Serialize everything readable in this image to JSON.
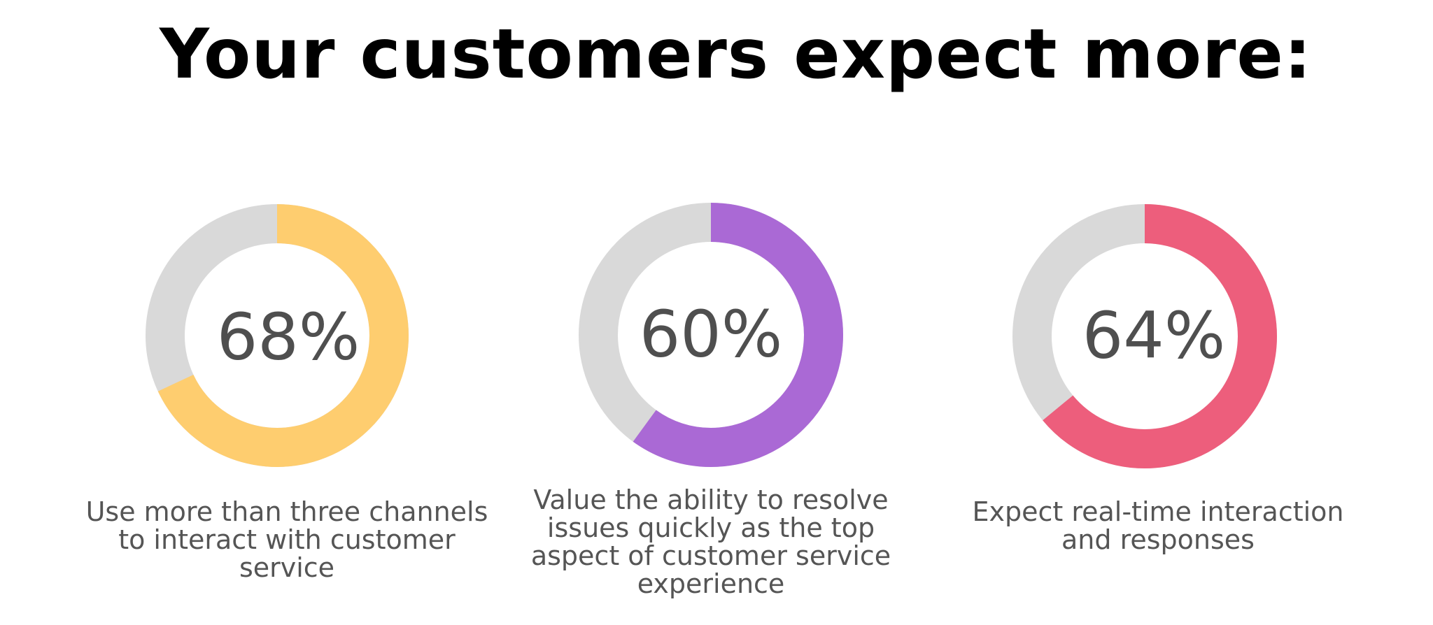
{
  "title": "Your customers expect more:",
  "colors": {
    "track": "#d9d9d9",
    "text": "#4f4f4f"
  },
  "chart_data": {
    "type": "donut",
    "items": [
      {
        "value": 68,
        "label": "68%",
        "caption": "Use more than three channels to interact with customer service",
        "color": "#fecd6f"
      },
      {
        "value": 60,
        "label": "60%",
        "caption": "Value the ability to resolve issues quickly as the top aspect of customer service experience",
        "color": "#aa69d5"
      },
      {
        "value": 64,
        "label": "64%",
        "caption": "Expect real-time interaction and responses",
        "color": "#ed5e7c"
      }
    ]
  }
}
